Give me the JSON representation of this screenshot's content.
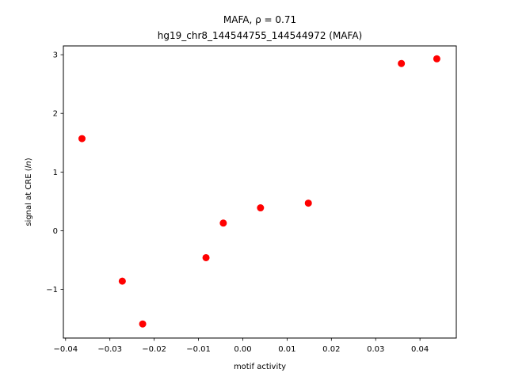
{
  "chart_data": {
    "type": "scatter",
    "title_line1": "MAFA, ρ = 0.71",
    "title_line2": "hg19_chr8_144544755_144544972 (MAFA)",
    "xlabel": "motif activity",
    "ylabel": "signal at CRE (ln)",
    "xlim": [
      -0.0405,
      0.0482
    ],
    "ylim": [
      -1.83,
      3.15
    ],
    "xticks": [
      -0.04,
      -0.03,
      -0.02,
      -0.01,
      0.0,
      0.01,
      0.02,
      0.03,
      0.04
    ],
    "xtick_labels": [
      "−0.04",
      "−0.03",
      "−0.02",
      "−0.01",
      "0.00",
      "0.01",
      "0.02",
      "0.03",
      "0.04"
    ],
    "yticks": [
      -1,
      0,
      1,
      2,
      3
    ],
    "ytick_labels": [
      "−1",
      "0",
      "1",
      "2",
      "3"
    ],
    "grid": false,
    "point_color": "#ff0000",
    "points": [
      {
        "x": -0.0363,
        "y": 1.57
      },
      {
        "x": -0.0272,
        "y": -0.86
      },
      {
        "x": -0.0226,
        "y": -1.59
      },
      {
        "x": -0.0083,
        "y": -0.46
      },
      {
        "x": -0.0044,
        "y": 0.13
      },
      {
        "x": 0.004,
        "y": 0.39
      },
      {
        "x": 0.0148,
        "y": 0.47
      },
      {
        "x": 0.0358,
        "y": 2.85
      },
      {
        "x": 0.0438,
        "y": 2.93
      }
    ]
  }
}
